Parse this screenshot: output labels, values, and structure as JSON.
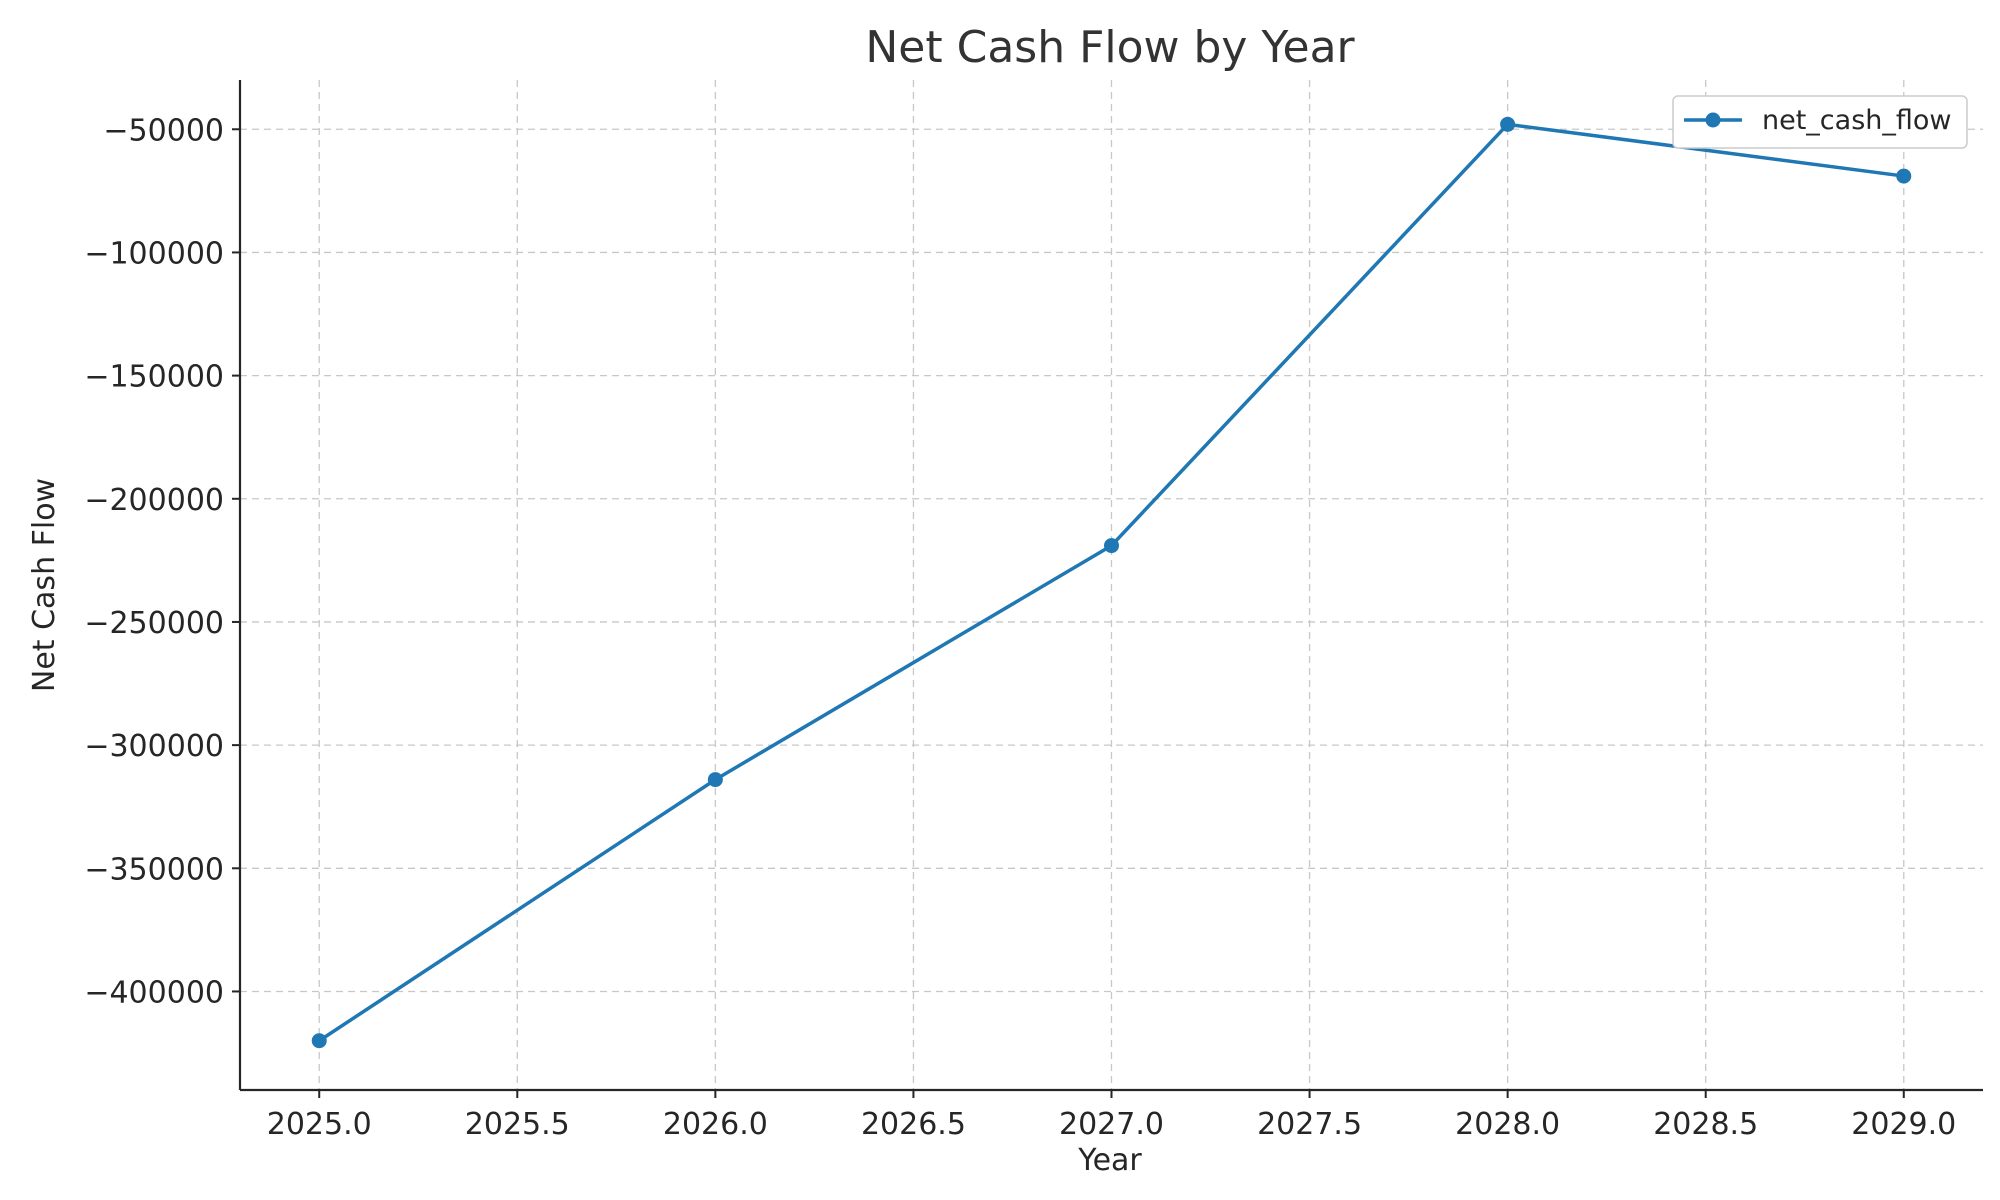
{
  "chart_data": {
    "type": "line",
    "title": "Net Cash Flow by Year",
    "xlabel": "Year",
    "ylabel": "Net Cash Flow",
    "xlim": [
      2024.8,
      2029.2
    ],
    "ylim": [
      -440000,
      -30000
    ],
    "x_ticks": [
      2025.0,
      2025.5,
      2026.0,
      2026.5,
      2027.0,
      2027.5,
      2028.0,
      2028.5,
      2029.0
    ],
    "x_tick_labels": [
      "2025.0",
      "2025.5",
      "2026.0",
      "2026.5",
      "2027.0",
      "2027.5",
      "2028.0",
      "2028.5",
      "2029.0"
    ],
    "y_ticks": [
      -50000,
      -100000,
      -150000,
      -200000,
      -250000,
      -300000,
      -350000,
      -400000
    ],
    "y_tick_labels": [
      "−50000",
      "−100000",
      "−150000",
      "−200000",
      "−250000",
      "−300000",
      "−350000",
      "−400000"
    ],
    "grid": true,
    "legend_position": "top-right",
    "series": [
      {
        "name": "net_cash_flow",
        "color": "#1f77b4",
        "marker": "circle",
        "x": [
          2025,
          2026,
          2027,
          2028,
          2029
        ],
        "y": [
          -420000,
          -314000,
          -219000,
          -48000,
          -69000
        ]
      }
    ]
  }
}
